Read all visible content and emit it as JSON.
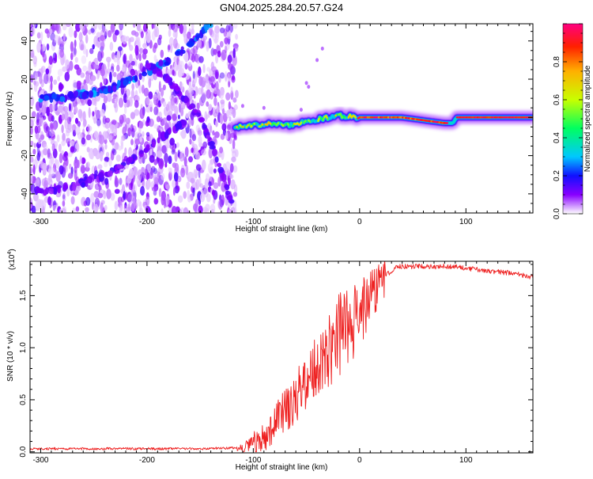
{
  "title": "GN04.2025.284.20.57.G24",
  "chart_data": [
    {
      "type": "heatmap",
      "xlabel": "Height of straight line (km)",
      "ylabel": "Frequency (Hz)",
      "xlim": [
        -310,
        163
      ],
      "ylim": [
        -50,
        49
      ],
      "x_ticks": [
        -300,
        -200,
        -100,
        0,
        100
      ],
      "y_ticks": [
        -40,
        -20,
        0,
        20,
        40
      ],
      "colorbar": {
        "label": "Normalized spectral amplitude",
        "range": [
          0,
          1
        ],
        "ticks": [
          "0.0",
          "0.2",
          "0.4",
          "0.6",
          "0.8"
        ]
      },
      "features": {
        "noisy_region_x": [
          -310,
          -115
        ],
        "upper_arc": [
          [
            -300,
            10
          ],
          [
            -270,
            11
          ],
          [
            -240,
            14
          ],
          [
            -210,
            21
          ],
          [
            -185,
            28
          ],
          [
            -160,
            38
          ],
          [
            -140,
            49
          ]
        ],
        "lower_arc": [
          [
            -305,
            -39
          ],
          [
            -270,
            -36
          ],
          [
            -240,
            -30
          ],
          [
            -210,
            -21
          ],
          [
            -185,
            -10
          ],
          [
            -165,
            -3
          ]
        ],
        "second_arc": [
          [
            -200,
            28
          ],
          [
            -180,
            20
          ],
          [
            -165,
            10
          ],
          [
            -150,
            0
          ],
          [
            -135,
            -20
          ],
          [
            -120,
            -45
          ]
        ],
        "carrier_line": [
          [
            -117,
            -5
          ],
          [
            -100,
            -4
          ],
          [
            -85,
            -3
          ],
          [
            -70,
            -4
          ],
          [
            -55,
            -3
          ],
          [
            -40,
            -1
          ],
          [
            -20,
            1
          ],
          [
            0,
            0
          ],
          [
            40,
            0
          ],
          [
            80,
            -3
          ],
          [
            88,
            -3
          ],
          [
            91,
            0
          ],
          [
            163,
            0
          ]
        ]
      }
    },
    {
      "type": "line",
      "xlabel": "Height of straight line (km)",
      "ylabel": "SNR (10 * v/v)",
      "multiplier": "(x10",
      "multiplier_exp": "4",
      "multiplier_close": ")",
      "xlim": [
        -310,
        163
      ],
      "ylim": [
        -0.01,
        1.83
      ],
      "x_ticks": [
        -300,
        -200,
        -100,
        0,
        100
      ],
      "y_ticks": [
        "0.0",
        "0.5",
        "1.0",
        "1.5"
      ],
      "color": "#ee2020",
      "envelope": [
        [
          -310,
          0.03
        ],
        [
          -150,
          0.03
        ],
        [
          -110,
          0.04
        ],
        [
          -95,
          0.12
        ],
        [
          -80,
          0.28
        ],
        [
          -60,
          0.55
        ],
        [
          -40,
          0.85
        ],
        [
          -20,
          1.15
        ],
        [
          0,
          1.35
        ],
        [
          20,
          1.65
        ],
        [
          35,
          1.78
        ],
        [
          60,
          1.78
        ],
        [
          90,
          1.78
        ],
        [
          110,
          1.75
        ],
        [
          140,
          1.72
        ],
        [
          163,
          1.68
        ]
      ]
    }
  ]
}
